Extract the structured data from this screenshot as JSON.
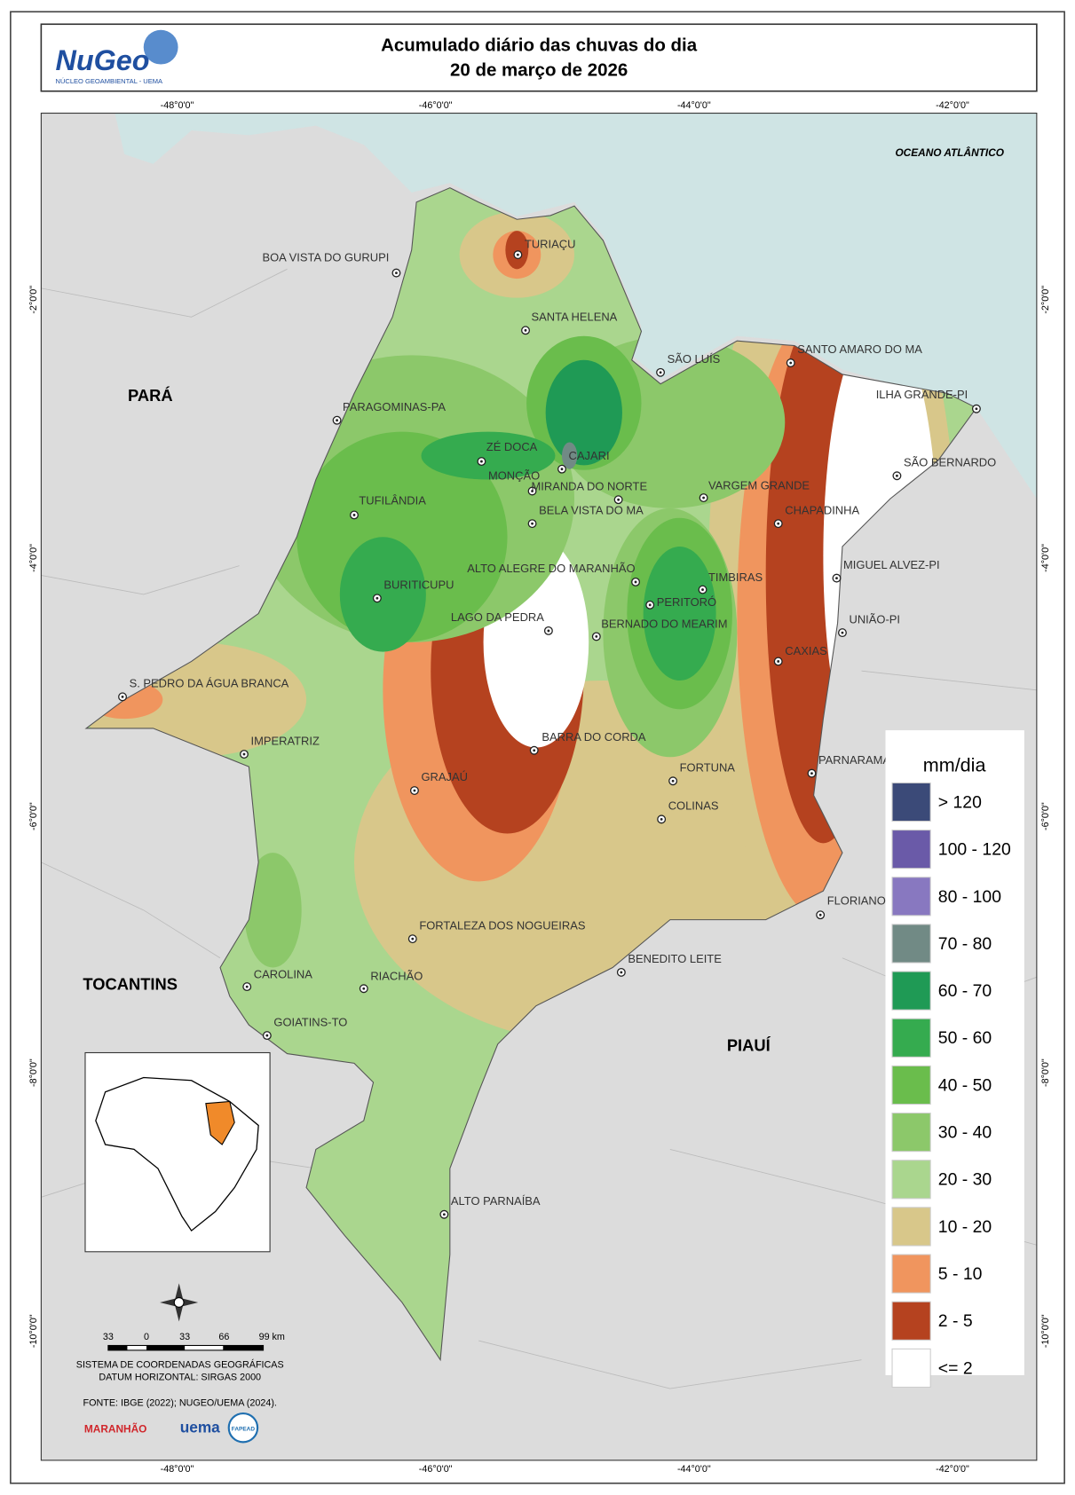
{
  "header": {
    "logo": "NuGeo",
    "logo_sub": "NÚCLEO GEOAMBIENTAL - UEMA",
    "title": [
      "Acumulado diário das chuvas do dia",
      "20 de março de 2026"
    ]
  },
  "map": {
    "ocean": "OCEANO ATLÂNTICO",
    "regions": [
      "PARÁ",
      "TOCANTINS",
      "PIAUÍ"
    ],
    "lon_labels": [
      "-48°0'0\"",
      "-46°0'0\"",
      "-44°0'0\"",
      "-42°0'0\""
    ],
    "lat_labels": [
      "-2°0'0\"",
      "-4°0'0\"",
      "-6°0'0\"",
      "-8°0'0\"",
      "-10°0'0\""
    ],
    "cities": [
      "TURIAÇU",
      "BOA VISTA DO GURUPI",
      "SANTA HELENA",
      "SÃO LUÍS",
      "SANTO AMARO DO MA",
      "PARAGOMINAS-PA",
      "ILHA GRANDE-PI",
      "ZÉ DOCA",
      "CAJARI",
      "SÃO BERNARDO",
      "MONÇÃO",
      "MIRANDA DO NORTE",
      "VARGEM GRANDE",
      "TUFILÂNDIA",
      "BELA VISTA DO MA",
      "CHAPADINHA",
      "ALTO ALEGRE DO MARANHÃO",
      "MIGUEL ALVEZ-PI",
      "TIMBIRAS",
      "BURITICUPU",
      "PERITORÓ",
      "LAGO DA PEDRA",
      "BERNADO DO MEARIM",
      "UNIÃO-PI",
      "CAXIAS",
      "S. PEDRO DA ÁGUA BRANCA",
      "BARRA DO CORDA",
      "IMPERATRIZ",
      "PARNARAMA",
      "FORTUNA",
      "GRAJAÚ",
      "COLINAS",
      "FLORIANO",
      "FORTALEZA DOS NOGUEIRAS",
      "BENEDITO LEITE",
      "CAROLINA",
      "RIACHÃO",
      "GOIATINS-TO",
      "ALTO PARNAÍBA"
    ]
  },
  "legend": {
    "title": "mm/dia",
    "items": [
      {
        "label": "> 120",
        "color": "#3b4a78"
      },
      {
        "label": "100 - 120",
        "color": "#6a5aa8"
      },
      {
        "label": "80 - 100",
        "color": "#8878c0"
      },
      {
        "label": "70 - 80",
        "color": "#718a85"
      },
      {
        "label": "60 - 70",
        "color": "#1f9a55"
      },
      {
        "label": "50 - 60",
        "color": "#35ab4f"
      },
      {
        "label": "40 - 50",
        "color": "#6abd4c"
      },
      {
        "label": "30 - 40",
        "color": "#8cc86a"
      },
      {
        "label": "20 - 30",
        "color": "#aad68e"
      },
      {
        "label": "10 - 20",
        "color": "#d8c78a"
      },
      {
        "label": "5 - 10",
        "color": "#f0955e"
      },
      {
        "label": "2 - 5",
        "color": "#b5421f"
      },
      {
        "label": "<= 2",
        "color": "#ffffff"
      }
    ]
  },
  "scale": {
    "ticks": [
      "33",
      "0",
      "33",
      "66",
      "99 km"
    ]
  },
  "footer": {
    "crs": [
      "SISTEMA DE COORDENADAS GEOGRÁFICAS",
      "DATUM HORIZONTAL: SIRGAS 2000"
    ],
    "source": "FONTE: IBGE (2022); NUGEO/UEMA (2024).",
    "logos": [
      "MARANHÃO",
      "uema",
      "FAPEAD"
    ]
  }
}
